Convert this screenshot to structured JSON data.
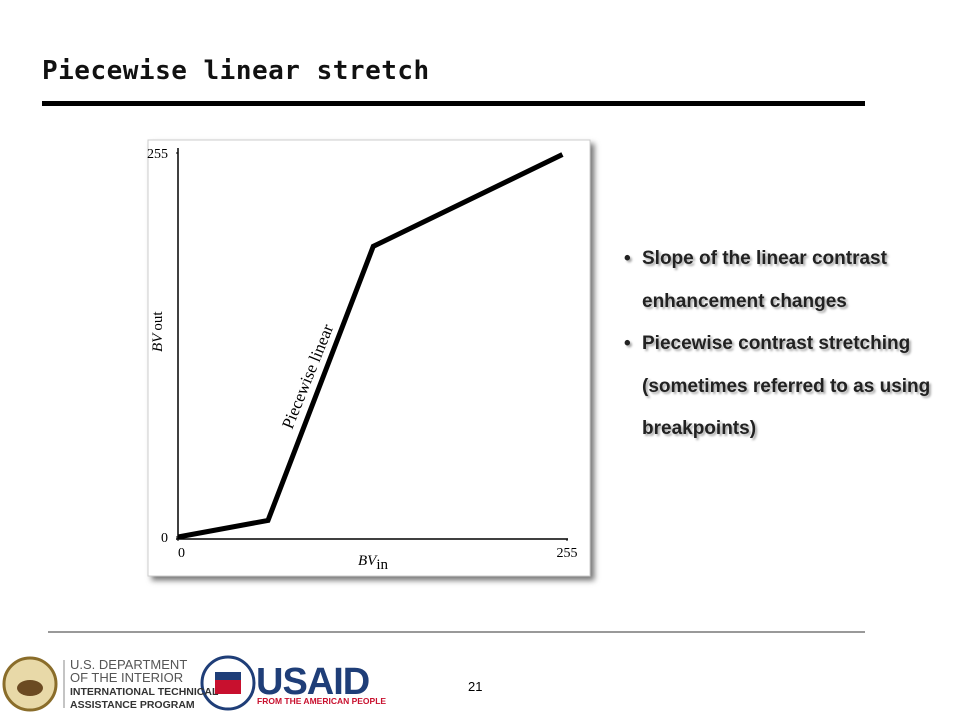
{
  "title": "Piecewise linear stretch",
  "chart_data": {
    "type": "line",
    "x": [
      0,
      59,
      128,
      252
    ],
    "values": [
      0,
      11,
      193,
      254
    ],
    "color": "#000000",
    "xlim": [
      0,
      255
    ],
    "ylim": [
      0,
      255
    ],
    "xticks": [
      0,
      255
    ],
    "yticks": [
      0,
      255
    ],
    "xlabel": "BV",
    "xlabel_sub": "in",
    "ylabel": "BV",
    "ylabel_sub": "out",
    "annotation": "Piecewise linear"
  },
  "bullets": [
    "Slope of the linear contrast enhancement changes",
    "Piecewise contrast stretching (sometimes referred to as using breakpoints)"
  ],
  "footer": {
    "page_number": "21",
    "doi": [
      "U.S. DEPARTMENT",
      "OF THE INTERIOR",
      "INTERNATIONAL TECHNICAL",
      "ASSISTANCE PROGRAM"
    ],
    "usaid": "USAID",
    "usaid_tagline": "FROM THE AMERICAN PEOPLE"
  }
}
